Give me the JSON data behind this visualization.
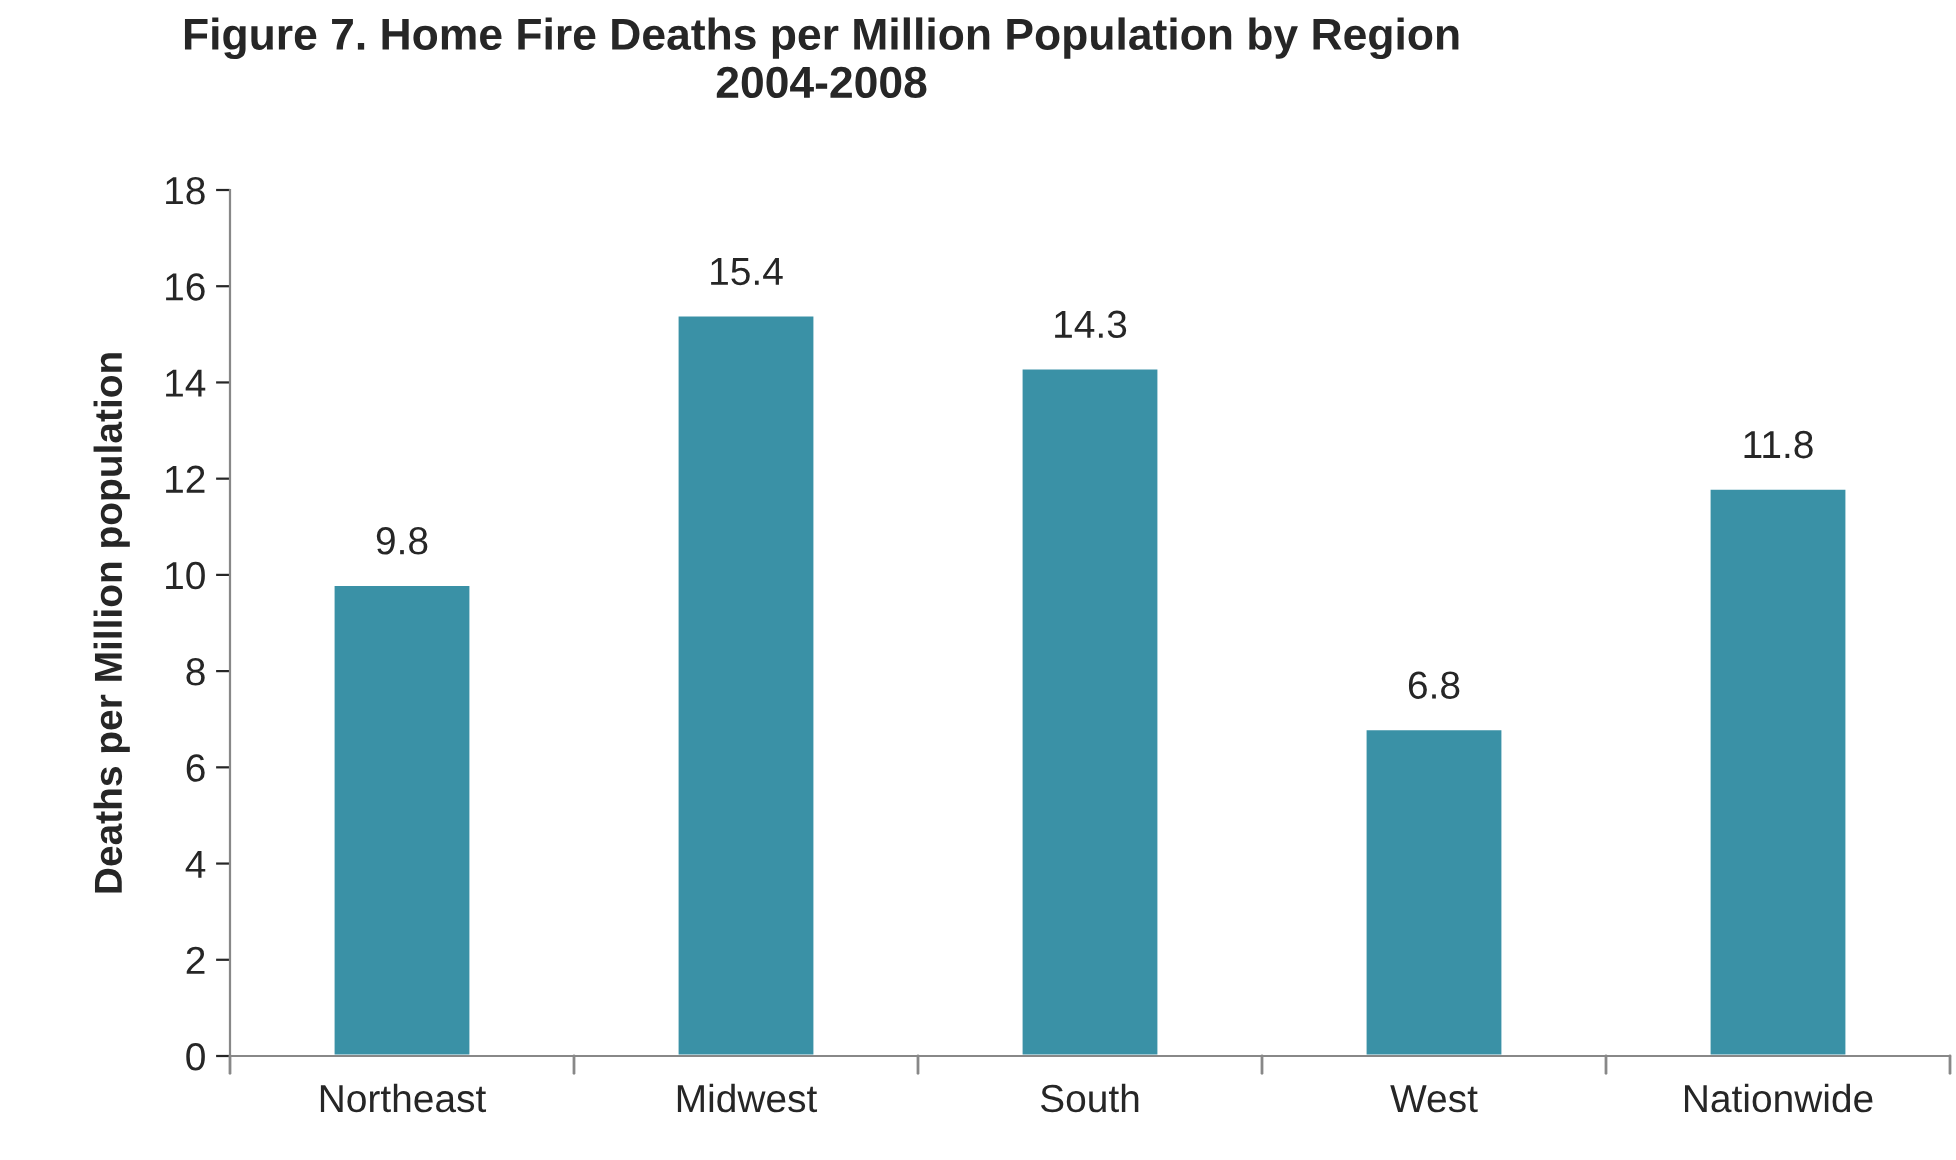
{
  "chart_data": {
    "type": "bar",
    "title": "Figure 7. Home Fire Deaths per Million Population by Region\n2004-2008",
    "ylabel": "Deaths per Million population",
    "categories": [
      "Northeast",
      "Midwest",
      "South",
      "West",
      "Nationwide"
    ],
    "values": [
      9.8,
      15.4,
      14.3,
      6.8,
      11.8
    ],
    "color": "#3a91a6",
    "ylim": [
      0,
      18
    ],
    "yticks": [
      0,
      2,
      4,
      6,
      8,
      10,
      12,
      14,
      16,
      18
    ],
    "data_labels": true,
    "grid": false,
    "legend": false
  }
}
